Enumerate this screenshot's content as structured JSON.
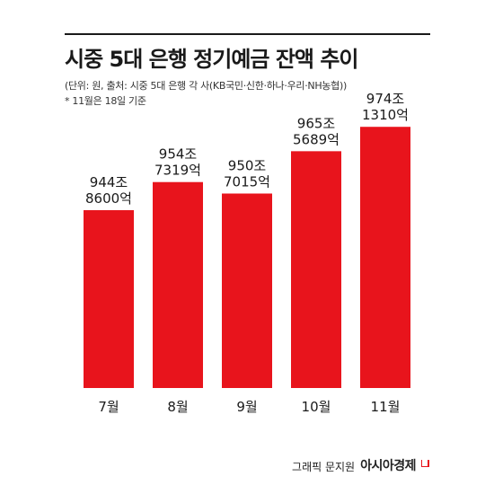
{
  "header": {
    "title": "시중 5대 은행 정기예금 잔액 추이",
    "unit_source": "(단위: 원, 출처: 시중 5대 은행 각 사(KB국민·신한·하나·우리·NH농협))",
    "note": "* 11월은 18일 기준"
  },
  "chart_data": {
    "type": "bar",
    "categories": [
      "7월",
      "8월",
      "9월",
      "10월",
      "11월"
    ],
    "values": [
      944.86,
      954.7319,
      950.7015,
      965.5689,
      974.131
    ],
    "data_labels": [
      [
        "944조",
        "8600억"
      ],
      [
        "954조",
        "7319억"
      ],
      [
        "950조",
        "7015억"
      ],
      [
        "965조",
        "5689억"
      ],
      [
        "974조",
        "1310억"
      ]
    ],
    "title": "시중 5대 은행 정기예금 잔액 추이",
    "bar_color": "#e8141c",
    "grid": false
  },
  "footer": {
    "credit": "그래픽 문지원",
    "brand": "아시아경제"
  }
}
